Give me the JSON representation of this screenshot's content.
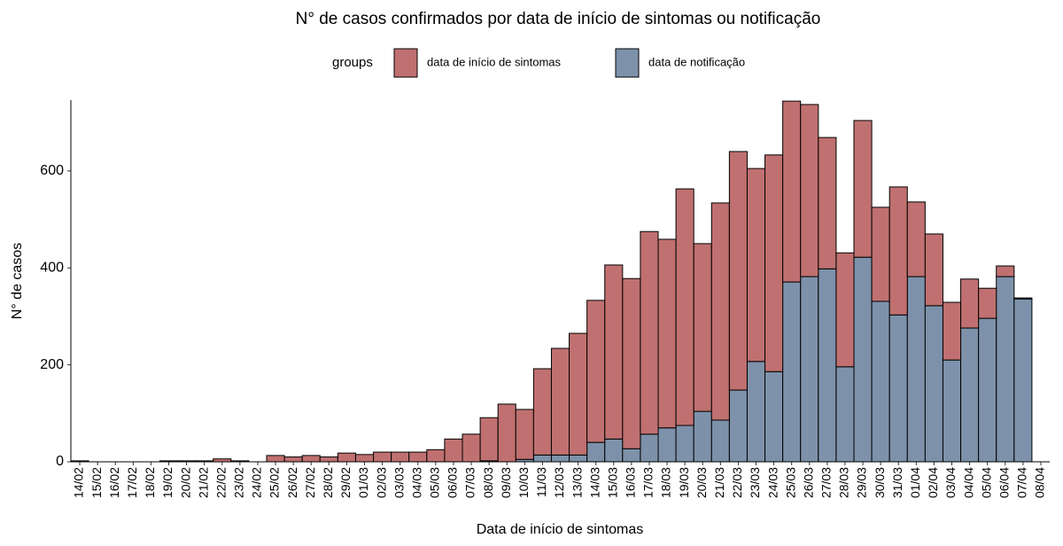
{
  "chart_data": {
    "type": "stacked_bar",
    "title": "N° de casos confirmados por data de início de sintomas ou notificação",
    "legend_title": "groups",
    "x_label": "Data de início de sintomas",
    "y_label": "N° de casos",
    "categories": [
      "14/02",
      "15/02",
      "16/02",
      "17/02",
      "18/02",
      "19/02",
      "20/02",
      "21/02",
      "22/02",
      "23/02",
      "24/02",
      "25/02",
      "26/02",
      "27/02",
      "28/02",
      "29/02",
      "01/03",
      "02/03",
      "03/03",
      "04/03",
      "05/03",
      "06/03",
      "07/03",
      "08/03",
      "09/03",
      "10/03",
      "11/03",
      "12/03",
      "13/03",
      "14/03",
      "15/03",
      "16/03",
      "17/03",
      "18/03",
      "19/03",
      "20/03",
      "21/03",
      "22/03",
      "23/03",
      "24/03",
      "25/03",
      "26/03",
      "27/03",
      "28/03",
      "29/03",
      "30/03",
      "31/03",
      "01/04",
      "02/04",
      "03/04",
      "04/04",
      "05/04",
      "06/04",
      "07/04",
      "08/04"
    ],
    "series": [
      {
        "name": "data de início de sintomas",
        "color": "#c07070",
        "values": [
          2,
          0,
          0,
          0,
          0,
          2,
          2,
          2,
          6,
          2,
          0,
          13,
          10,
          13,
          10,
          18,
          15,
          20,
          20,
          20,
          25,
          47,
          57,
          89,
          119,
          103,
          178,
          220,
          251,
          293,
          359,
          351,
          418,
          389,
          488,
          346,
          448,
          492,
          398,
          447,
          373,
          355,
          271,
          235,
          282,
          194,
          264,
          154,
          148,
          119,
          101,
          62,
          22,
          2,
          0
        ]
      },
      {
        "name": "data de notificação",
        "color": "#7d92aa",
        "values": [
          0,
          0,
          0,
          0,
          0,
          0,
          0,
          0,
          0,
          0,
          0,
          0,
          0,
          0,
          0,
          0,
          0,
          0,
          0,
          0,
          0,
          0,
          0,
          2,
          0,
          5,
          14,
          14,
          14,
          40,
          47,
          27,
          57,
          70,
          75,
          104,
          86,
          148,
          207,
          186,
          371,
          382,
          398,
          196,
          422,
          331,
          303,
          382,
          322,
          210,
          276,
          296,
          382,
          336,
          0
        ]
      }
    ],
    "ylim": [
      0,
      746
    ],
    "yticks": [
      0,
      200,
      400,
      600
    ],
    "grid": false
  }
}
